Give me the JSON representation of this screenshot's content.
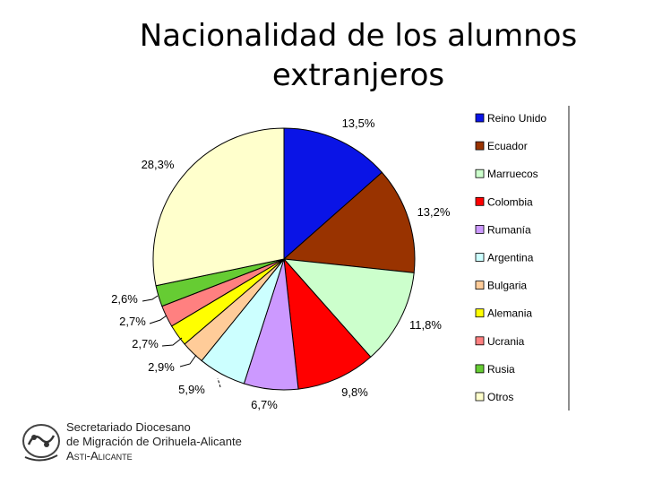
{
  "title_line1": "Nacionalidad de los alumnos",
  "title_line2": "extranjeros",
  "logo": {
    "line1": "Secretariado Diocesano",
    "line2": "de Migración de Orihuela-Alicante",
    "line3": "Asti-Alicante"
  },
  "chart_data": {
    "type": "pie",
    "title": "Nacionalidad de los alumnos extranjeros",
    "legend_position": "right",
    "categories": [
      "Reino Unido",
      "Ecuador",
      "Marruecos",
      "Colombia",
      "Rumanía",
      "Argentina",
      "Bulgaria",
      "Alemania",
      "Ucrania",
      "Rusia",
      "Otros"
    ],
    "values": [
      13.5,
      13.2,
      11.8,
      9.8,
      6.7,
      5.9,
      2.9,
      2.7,
      2.7,
      2.6,
      28.3
    ],
    "labels": [
      "13,5%",
      "13,2%",
      "11,8%",
      "9,8%",
      "6,7%",
      "5,9%",
      "2,9%",
      "2,7%",
      "2,7%",
      "2,6%",
      "28,3%"
    ],
    "colors": [
      "#0a14e6",
      "#993300",
      "#ccffcc",
      "#ff0000",
      "#cc99ff",
      "#ccffff",
      "#ffcc99",
      "#ffff00",
      "#ff8080",
      "#66cc33",
      "#ffffcc"
    ]
  }
}
